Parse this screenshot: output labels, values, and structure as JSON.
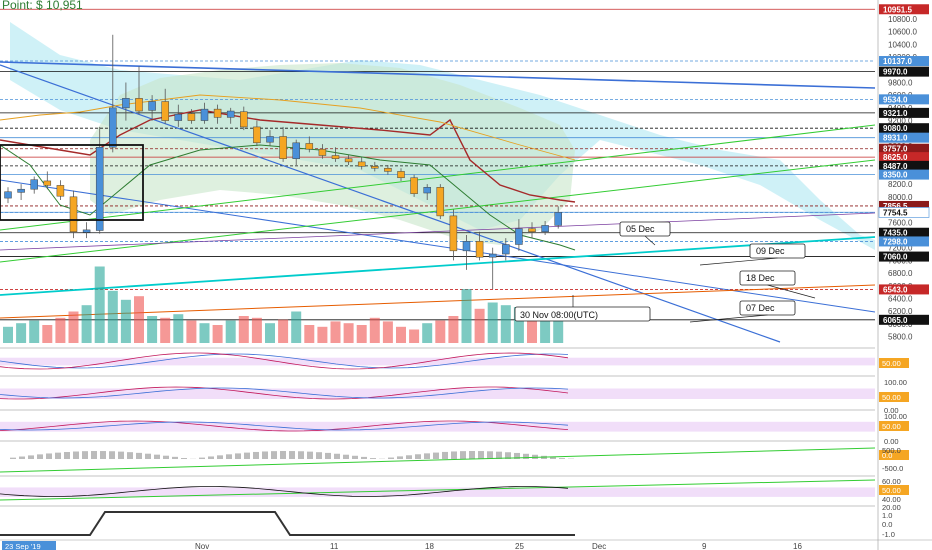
{
  "header": {
    "text": "Point: $ 10,951"
  },
  "colors": {
    "up": "#4a90d9",
    "down": "#f5a623",
    "bullish_candle": "#3b6fd6",
    "volume_up": "#26a69a",
    "volume_down": "#ef5350",
    "cloud": "#a8e6f0",
    "ichimoku_green": "#c8e6c9",
    "osc_band": "#e8c8f5"
  },
  "chart_data": {
    "type": "candlestick",
    "symbol_header": "Point: $ 10,951",
    "x_ticks": [
      "Nov",
      "11",
      "18",
      "25",
      "Dec",
      "9",
      "16"
    ],
    "start_date_label": "23 Sep '19",
    "cursor_label": "30 Nov 08:00(UTC)",
    "annotations": [
      "05 Dec",
      "09 Dec",
      "18 Dec",
      "07 Dec"
    ],
    "price_axis": {
      "labels": [
        "10800.0",
        "10600.0",
        "10400.0",
        "10200.0",
        "9800.0",
        "9600.0",
        "9400.0",
        "9200.0",
        "8800.0",
        "8400.0",
        "8200.0",
        "8000.0",
        "7600.0",
        "7200.0",
        "7000.0",
        "6800.0",
        "6600.0",
        "6400.0",
        "6200.0",
        "6000.0",
        "5800.0"
      ],
      "highlighted": [
        {
          "label": "10951.5",
          "value": 10951.5,
          "color": "#c62828"
        },
        {
          "label": "10137.0",
          "value": 10137.0,
          "color": "#4a90d9"
        },
        {
          "label": "9970.0",
          "value": 9970.0,
          "color": "#111111"
        },
        {
          "label": "9534.0",
          "value": 9534.0,
          "color": "#4a90d9"
        },
        {
          "label": "9321.0",
          "value": 9321.0,
          "color": "#111111"
        },
        {
          "label": "9080.0",
          "value": 9080.0,
          "color": "#111111"
        },
        {
          "label": "8931.0",
          "value": 8931.0,
          "color": "#4a90d9"
        },
        {
          "label": "8757.0",
          "value": 8757.0,
          "color": "#8b1a1a"
        },
        {
          "label": "8625.0",
          "value": 8625.0,
          "color": "#c62828"
        },
        {
          "label": "8487.0",
          "value": 8487.0,
          "color": "#111111"
        },
        {
          "label": "8350.0",
          "value": 8350.0,
          "color": "#4a90d9"
        },
        {
          "label": "7856.5",
          "value": 7856.5,
          "color": "#8b1a1a"
        },
        {
          "label": "7757.5",
          "value": 7757.5,
          "color": "#4a90d9"
        },
        {
          "label": "7754.5",
          "value": 7754.5,
          "color": "#ffffff"
        },
        {
          "label": "7435.0",
          "value": 7435.0,
          "color": "#111111"
        },
        {
          "label": "7298.0",
          "value": 7298.0,
          "color": "#4a90d9"
        },
        {
          "label": "7060.0",
          "value": 7060.0,
          "color": "#111111"
        },
        {
          "label": "6543.0",
          "value": 6543.0,
          "color": "#c62828"
        },
        {
          "label": "6065.0",
          "value": 6065.0,
          "color": "#111111"
        }
      ],
      "range": [
        5700,
        11050
      ]
    },
    "candles": [
      {
        "o": 7980,
        "h": 8150,
        "l": 7900,
        "c": 8080
      },
      {
        "o": 8070,
        "h": 8200,
        "l": 7950,
        "c": 8120
      },
      {
        "o": 8120,
        "h": 8320,
        "l": 8050,
        "c": 8270
      },
      {
        "o": 8250,
        "h": 8400,
        "l": 8120,
        "c": 8180
      },
      {
        "o": 8180,
        "h": 8260,
        "l": 7950,
        "c": 8010
      },
      {
        "o": 8000,
        "h": 8100,
        "l": 7350,
        "c": 7450
      },
      {
        "o": 7440,
        "h": 7600,
        "l": 7350,
        "c": 7480
      },
      {
        "o": 7470,
        "h": 9100,
        "l": 7420,
        "c": 8780
      },
      {
        "o": 8780,
        "h": 10550,
        "l": 8700,
        "c": 9400
      },
      {
        "o": 9400,
        "h": 9800,
        "l": 9200,
        "c": 9550
      },
      {
        "o": 9550,
        "h": 10050,
        "l": 9300,
        "c": 9350
      },
      {
        "o": 9360,
        "h": 9600,
        "l": 9200,
        "c": 9500
      },
      {
        "o": 9500,
        "h": 9700,
        "l": 9150,
        "c": 9200
      },
      {
        "o": 9200,
        "h": 9450,
        "l": 9100,
        "c": 9300
      },
      {
        "o": 9310,
        "h": 9380,
        "l": 9150,
        "c": 9200
      },
      {
        "o": 9200,
        "h": 9480,
        "l": 9150,
        "c": 9380
      },
      {
        "o": 9380,
        "h": 9450,
        "l": 9150,
        "c": 9250
      },
      {
        "o": 9250,
        "h": 9400,
        "l": 9150,
        "c": 9350
      },
      {
        "o": 9340,
        "h": 9420,
        "l": 9050,
        "c": 9100
      },
      {
        "o": 9100,
        "h": 9200,
        "l": 8800,
        "c": 8850
      },
      {
        "o": 8860,
        "h": 9050,
        "l": 8800,
        "c": 8950
      },
      {
        "o": 8950,
        "h": 9100,
        "l": 8550,
        "c": 8600
      },
      {
        "o": 8600,
        "h": 8900,
        "l": 8500,
        "c": 8850
      },
      {
        "o": 8840,
        "h": 8950,
        "l": 8700,
        "c": 8750
      },
      {
        "o": 8750,
        "h": 8830,
        "l": 8600,
        "c": 8650
      },
      {
        "o": 8650,
        "h": 8780,
        "l": 8550,
        "c": 8600
      },
      {
        "o": 8600,
        "h": 8660,
        "l": 8500,
        "c": 8550
      },
      {
        "o": 8550,
        "h": 8620,
        "l": 8430,
        "c": 8480
      },
      {
        "o": 8480,
        "h": 8550,
        "l": 8400,
        "c": 8450
      },
      {
        "o": 8450,
        "h": 8500,
        "l": 8350,
        "c": 8400
      },
      {
        "o": 8400,
        "h": 8450,
        "l": 8250,
        "c": 8300
      },
      {
        "o": 8300,
        "h": 8350,
        "l": 8000,
        "c": 8050
      },
      {
        "o": 8060,
        "h": 8200,
        "l": 7950,
        "c": 8150
      },
      {
        "o": 8150,
        "h": 8200,
        "l": 7650,
        "c": 7700
      },
      {
        "o": 7700,
        "h": 7800,
        "l": 7000,
        "c": 7150
      },
      {
        "o": 7150,
        "h": 7400,
        "l": 6850,
        "c": 7300
      },
      {
        "o": 7300,
        "h": 7450,
        "l": 7000,
        "c": 7050
      },
      {
        "o": 7050,
        "h": 7200,
        "l": 6550,
        "c": 7100
      },
      {
        "o": 7100,
        "h": 7350,
        "l": 7000,
        "c": 7250
      },
      {
        "o": 7250,
        "h": 7650,
        "l": 7150,
        "c": 7500
      },
      {
        "o": 7500,
        "h": 7600,
        "l": 7350,
        "c": 7450
      },
      {
        "o": 7450,
        "h": 7620,
        "l": 7400,
        "c": 7550
      },
      {
        "o": 7550,
        "h": 7850,
        "l": 7500,
        "c": 7757.5
      }
    ],
    "volume": [
      18,
      22,
      25,
      20,
      28,
      35,
      42,
      85,
      58,
      48,
      52,
      30,
      28,
      32,
      25,
      22,
      20,
      25,
      30,
      28,
      22,
      26,
      35,
      20,
      18,
      24,
      22,
      20,
      28,
      24,
      18,
      15,
      22,
      25,
      30,
      60,
      38,
      45,
      42,
      40,
      35,
      32,
      28
    ],
    "oscillator_levels": [
      "50.00",
      "50.00",
      "50.00",
      "0.0",
      "500.0",
      "-500.0",
      "60.00",
      "50.00",
      "40.00",
      "20.00",
      "1.0",
      "0.0",
      "-1.0"
    ],
    "oscillator_axis_labels": [
      "100.00",
      "0.00",
      "100.00",
      "0.00"
    ]
  }
}
